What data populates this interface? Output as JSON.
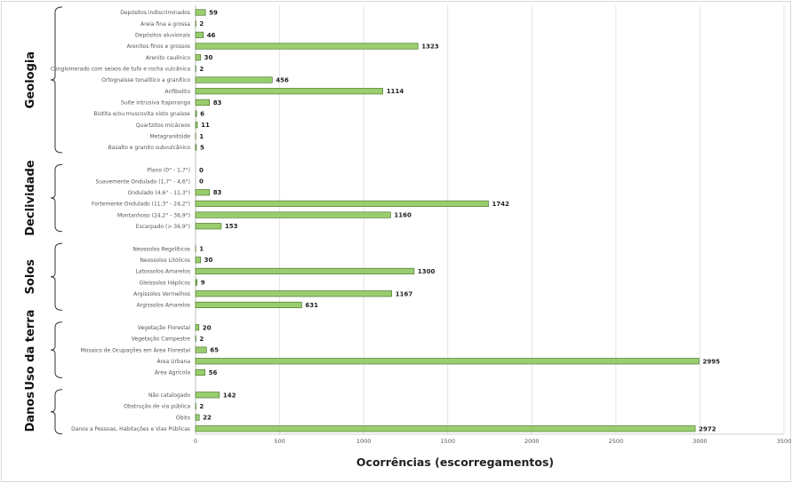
{
  "chart_data": {
    "type": "bar",
    "orientation": "horizontal",
    "xlabel": "Ocorrências (escorregamentos)",
    "xlim": [
      0,
      3500
    ],
    "xticks": [
      0,
      500,
      1000,
      1500,
      2000,
      2500,
      3000,
      3500
    ],
    "grid": true,
    "bar_color": "#9acd6e",
    "groups": [
      {
        "name": "Geologia",
        "items": [
          {
            "label": "Depósitos indiscriminados",
            "value": 59
          },
          {
            "label": "Areia fina a grossa",
            "value": 2
          },
          {
            "label": "Depósitos aluvionais",
            "value": 46
          },
          {
            "label": "Arenitos finos e grossos",
            "value": 1323
          },
          {
            "label": "Arenito caulínico",
            "value": 30
          },
          {
            "label": "Conglomerado com seixos de tufo e rocha vulcânica",
            "value": 2
          },
          {
            "label": "Ortognaisse tonalítico a granítico",
            "value": 456
          },
          {
            "label": "Anfibolito",
            "value": 1114
          },
          {
            "label": "Suíte intrusiva Itaporanga",
            "value": 83
          },
          {
            "label": "Biotita e/ou muscovita xisto gnaisse",
            "value": 6
          },
          {
            "label": "Quartzitos micáceos",
            "value": 11
          },
          {
            "label": "Metagranitóide",
            "value": 1
          },
          {
            "label": "Basalto e granito subvulcânico",
            "value": 5
          }
        ]
      },
      {
        "name": "Declividade",
        "items": [
          {
            "label": "Plano (0° - 1,7°)",
            "value": 0
          },
          {
            "label": "Suavemente Ondulado (1,7° - 4,6°)",
            "value": 0
          },
          {
            "label": "Ondulado (4,6° - 11,3°)",
            "value": 83
          },
          {
            "label": "Fortemente Ondulado (11,3° - 24,2°)",
            "value": 1742
          },
          {
            "label": "Montanhoso (24,2° - 36,9°)",
            "value": 1160
          },
          {
            "label": "Escarpado (> 36,9°)",
            "value": 153
          }
        ]
      },
      {
        "name": "Solos",
        "items": [
          {
            "label": "Neossolos Regolíticos",
            "value": 1
          },
          {
            "label": "Neossolos Litólicos",
            "value": 30
          },
          {
            "label": "Latossolos Amarelos",
            "value": 1300
          },
          {
            "label": "Gleissolos Háplicos",
            "value": 9
          },
          {
            "label": "Argissolos Vermelhos",
            "value": 1167
          },
          {
            "label": "Argissolos Amarelos",
            "value": 631
          }
        ]
      },
      {
        "name": "Uso da terra",
        "items": [
          {
            "label": "Vegetação Florestal",
            "value": 20
          },
          {
            "label": "Vegetação Campestre",
            "value": 2
          },
          {
            "label": "Mosaico de Ocupações em Área Florestal",
            "value": 65
          },
          {
            "label": "Área Urbana",
            "value": 2995
          },
          {
            "label": "Área Agrícola",
            "value": 56
          }
        ]
      },
      {
        "name": "Danos",
        "items": [
          {
            "label": "Não catalogado",
            "value": 142
          },
          {
            "label": "Obstrução de via pública",
            "value": 2
          },
          {
            "label": "Óbito",
            "value": 22
          },
          {
            "label": "Danos a Pessoas, Habitações e Vias Públicas",
            "value": 2972
          }
        ]
      }
    ]
  }
}
